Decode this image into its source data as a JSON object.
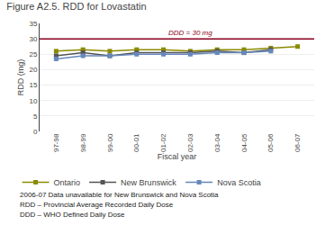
{
  "chart_data": {
    "type": "line",
    "title": "Figure A2.5. RDD for Lovastatin",
    "xlabel": "Fiscal year",
    "ylabel": "RDD (mg)",
    "categories": [
      "97-98",
      "98-99",
      "99-00",
      "00-01",
      "01-02",
      "02-03",
      "03-04",
      "04-05",
      "05-06",
      "06-07"
    ],
    "series": [
      {
        "name": "Ontario",
        "color": "#8B8B00",
        "values": [
          26.0,
          26.5,
          26.0,
          26.5,
          26.5,
          26.0,
          26.5,
          26.5,
          27.0,
          27.5
        ]
      },
      {
        "name": "New Brunswick",
        "color": "#555555",
        "values": [
          24.5,
          25.5,
          24.5,
          25.5,
          25.5,
          25.5,
          26.0,
          25.5,
          26.5,
          null
        ]
      },
      {
        "name": "Nova Scotia",
        "color": "#6688bb",
        "values": [
          23.5,
          24.5,
          24.5,
          25.0,
          25.0,
          25.0,
          25.5,
          25.5,
          26.0,
          null
        ]
      }
    ],
    "marker": "square",
    "ylim": [
      0,
      35
    ],
    "yticks": [
      0,
      5,
      10,
      15,
      20,
      25,
      30,
      35
    ],
    "grid": true,
    "legend": "bottom",
    "hlines": [
      {
        "value": 30,
        "color": "#880020",
        "label": "DDD = 30 mg"
      }
    ],
    "notes": [
      "2006-07 Data unavailable for New Brunswick and Nova Scotia",
      "RDD – Provincial Average Recorded Daily Dose",
      "DDD – WHO Defined Daily Dose"
    ]
  }
}
